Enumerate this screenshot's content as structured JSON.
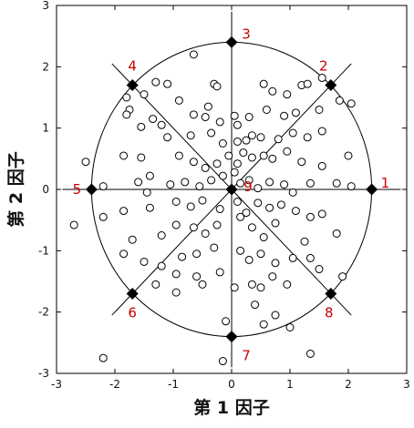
{
  "chart_data": {
    "type": "scatter",
    "xlabel": "第 1 因子",
    "ylabel": "第 2 因子",
    "xlim": [
      -3,
      3
    ],
    "ylim": [
      -3,
      3
    ],
    "xticks": [
      "-3",
      "-2",
      "-1",
      "0",
      "1",
      "2",
      "3"
    ],
    "yticks": [
      "-3",
      "-2",
      "-1",
      "0",
      "1",
      "2",
      "3"
    ],
    "grid": false,
    "annotation_color": "#cc0000",
    "reference": {
      "circle_radius": 2.4,
      "lines_through_origin_deg": [
        0,
        45,
        90,
        135
      ],
      "line_half_length": 2.9
    },
    "anchors": [
      {
        "label": "1",
        "x": 2.4,
        "y": 0
      },
      {
        "label": "2",
        "x": 1.7,
        "y": 1.7
      },
      {
        "label": "3",
        "x": 0,
        "y": 2.4
      },
      {
        "label": "4",
        "x": -1.7,
        "y": 1.7
      },
      {
        "label": "5",
        "x": -2.4,
        "y": 0
      },
      {
        "label": "6",
        "x": -1.7,
        "y": -1.7
      },
      {
        "label": "7",
        "x": 0,
        "y": -2.4
      },
      {
        "label": "8",
        "x": 1.7,
        "y": -1.7
      },
      {
        "label": "9",
        "x": 0,
        "y": 0
      }
    ],
    "points": [
      [
        -0.65,
        2.2
      ],
      [
        -0.3,
        1.72
      ],
      [
        -0.25,
        1.68
      ],
      [
        -1.3,
        1.75
      ],
      [
        -1.1,
        1.72
      ],
      [
        0.55,
        1.72
      ],
      [
        0.7,
        1.6
      ],
      [
        0.95,
        1.55
      ],
      [
        1.2,
        1.7
      ],
      [
        1.3,
        1.72
      ],
      [
        1.55,
        1.82
      ],
      [
        -1.8,
        1.5
      ],
      [
        -1.5,
        1.55
      ],
      [
        -1.75,
        1.3
      ],
      [
        -2.5,
        0.45
      ],
      [
        -2.7,
        -0.58
      ],
      [
        -1.55,
        1.02
      ],
      [
        -0.9,
        1.45
      ],
      [
        -0.4,
        1.35
      ],
      [
        -0.65,
        1.22
      ],
      [
        -0.45,
        1.18
      ],
      [
        -0.2,
        1.1
      ],
      [
        0.05,
        1.2
      ],
      [
        0.3,
        1.18
      ],
      [
        0.1,
        1.05
      ],
      [
        0.6,
        1.3
      ],
      [
        0.9,
        1.2
      ],
      [
        1.1,
        1.25
      ],
      [
        1.5,
        1.3
      ],
      [
        1.85,
        1.45
      ],
      [
        2.05,
        1.4
      ],
      [
        -1.8,
        1.22
      ],
      [
        -1.35,
        1.15
      ],
      [
        -1.2,
        1.05
      ],
      [
        -1.1,
        0.85
      ],
      [
        -0.7,
        0.88
      ],
      [
        -0.35,
        0.92
      ],
      [
        -0.15,
        0.75
      ],
      [
        0.1,
        0.78
      ],
      [
        0.25,
        0.8
      ],
      [
        0.35,
        0.88
      ],
      [
        0.5,
        0.85
      ],
      [
        0.8,
        0.82
      ],
      [
        1.05,
        0.92
      ],
      [
        1.3,
        0.85
      ],
      [
        1.55,
        0.95
      ],
      [
        -1.55,
        0.52
      ],
      [
        -1.85,
        0.55
      ],
      [
        -1.4,
        0.22
      ],
      [
        -1.6,
        0.12
      ],
      [
        -0.9,
        0.55
      ],
      [
        -0.65,
        0.45
      ],
      [
        -0.45,
        0.35
      ],
      [
        -0.25,
        0.42
      ],
      [
        -0.05,
        0.55
      ],
      [
        0.1,
        0.42
      ],
      [
        0.2,
        0.6
      ],
      [
        0.35,
        0.52
      ],
      [
        0.55,
        0.55
      ],
      [
        0.7,
        0.5
      ],
      [
        0.95,
        0.62
      ],
      [
        1.2,
        0.45
      ],
      [
        1.55,
        0.38
      ],
      [
        2.0,
        0.55
      ],
      [
        -2.2,
        0.05
      ],
      [
        -1.45,
        -0.05
      ],
      [
        -1.05,
        0.08
      ],
      [
        -0.8,
        0.12
      ],
      [
        -0.55,
        0.05
      ],
      [
        -0.35,
        0.15
      ],
      [
        -0.15,
        0.22
      ],
      [
        0.05,
        0.28
      ],
      [
        0.15,
        0.1
      ],
      [
        0.3,
        0.15
      ],
      [
        0.45,
        0.02
      ],
      [
        0.65,
        0.12
      ],
      [
        0.9,
        0.08
      ],
      [
        1.05,
        -0.05
      ],
      [
        1.35,
        0.1
      ],
      [
        1.8,
        0.1
      ],
      [
        2.05,
        0.05
      ],
      [
        -2.2,
        -0.45
      ],
      [
        -1.85,
        -0.35
      ],
      [
        -1.4,
        -0.3
      ],
      [
        -0.95,
        -0.2
      ],
      [
        -0.7,
        -0.28
      ],
      [
        -0.5,
        -0.18
      ],
      [
        -0.2,
        -0.32
      ],
      [
        0.1,
        -0.2
      ],
      [
        0.25,
        -0.38
      ],
      [
        0.45,
        -0.22
      ],
      [
        0.65,
        -0.3
      ],
      [
        0.85,
        -0.25
      ],
      [
        1.1,
        -0.35
      ],
      [
        1.35,
        -0.45
      ],
      [
        1.55,
        -0.4
      ],
      [
        -1.85,
        -1.05
      ],
      [
        -1.7,
        -0.82
      ],
      [
        -1.2,
        -0.75
      ],
      [
        -0.95,
        -0.58
      ],
      [
        -0.65,
        -0.62
      ],
      [
        -0.45,
        -0.72
      ],
      [
        -0.25,
        -0.58
      ],
      [
        0.15,
        -0.45
      ],
      [
        0.35,
        -0.62
      ],
      [
        0.55,
        -0.78
      ],
      [
        0.75,
        -0.55
      ],
      [
        1.25,
        -0.85
      ],
      [
        1.8,
        -0.72
      ],
      [
        -1.5,
        -1.18
      ],
      [
        -1.2,
        -1.25
      ],
      [
        -0.85,
        -1.1
      ],
      [
        -0.6,
        -1.05
      ],
      [
        -0.3,
        -0.95
      ],
      [
        0.15,
        -1.0
      ],
      [
        0.3,
        -1.15
      ],
      [
        0.5,
        -1.05
      ],
      [
        0.75,
        -1.2
      ],
      [
        1.05,
        -1.12
      ],
      [
        1.35,
        -1.12
      ],
      [
        1.5,
        -1.3
      ],
      [
        1.9,
        -1.42
      ],
      [
        -0.95,
        -1.38
      ],
      [
        -0.6,
        -1.42
      ],
      [
        -0.2,
        -1.35
      ],
      [
        0.35,
        -1.55
      ],
      [
        -0.5,
        -1.55
      ],
      [
        -1.3,
        -1.55
      ],
      [
        -0.95,
        -1.68
      ],
      [
        0.05,
        -1.6
      ],
      [
        0.5,
        -1.6
      ],
      [
        0.7,
        -1.42
      ],
      [
        0.95,
        -1.55
      ],
      [
        -0.1,
        -2.15
      ],
      [
        0.4,
        -1.88
      ],
      [
        0.55,
        -2.2
      ],
      [
        0.75,
        -2.05
      ],
      [
        1.0,
        -2.25
      ],
      [
        -2.2,
        -2.75
      ],
      [
        -0.15,
        -2.8
      ],
      [
        1.35,
        -2.68
      ]
    ]
  }
}
